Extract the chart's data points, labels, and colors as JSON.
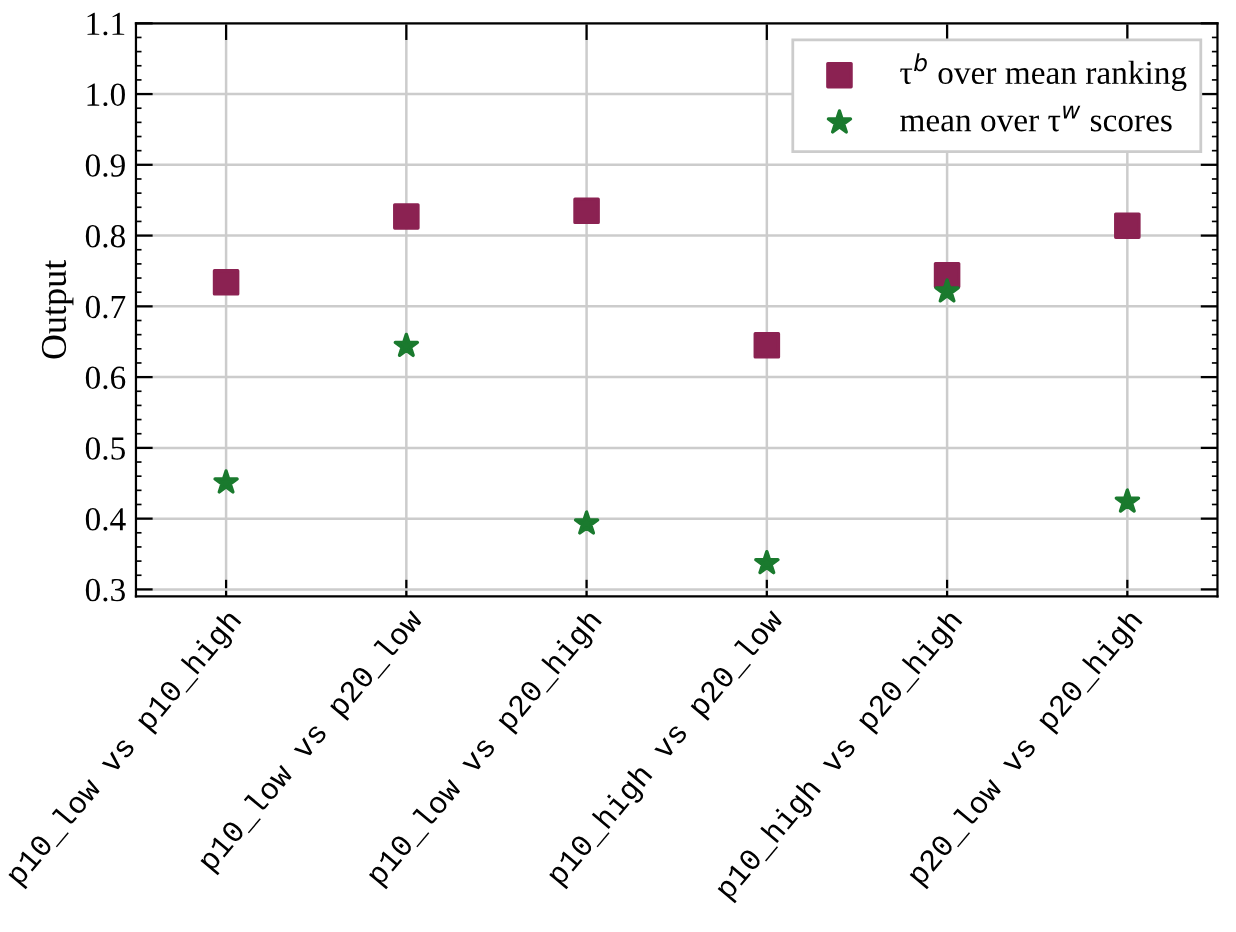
{
  "chart_data": {
    "type": "scatter",
    "ylabel": "Output",
    "categories": [
      "p10_low vs p10_high",
      "p10_low vs p20_low",
      "p10_low vs p20_high",
      "p10_high vs p20_low",
      "p10_high vs p20_high",
      "p20_low vs p20_high"
    ],
    "series": [
      {
        "name": "τ$^{b}$ over mean ranking",
        "color": "#8b2252",
        "marker": "square",
        "values": [
          0.734,
          0.827,
          0.835,
          0.645,
          0.744,
          0.814
        ]
      },
      {
        "name": "mean over τ$^{w}$ scores",
        "color": "#1a7a2e",
        "marker": "star",
        "values": [
          0.451,
          0.644,
          0.393,
          0.337,
          0.721,
          0.424
        ]
      }
    ],
    "ylim": [
      0.29,
      1.1
    ],
    "yticks": [
      0.3,
      0.4,
      0.5,
      0.6,
      0.7,
      0.8,
      0.9,
      {
        "value": 1,
        "label": "1.0"
      },
      1.1
    ],
    "grid": true,
    "legend": "top right"
  }
}
